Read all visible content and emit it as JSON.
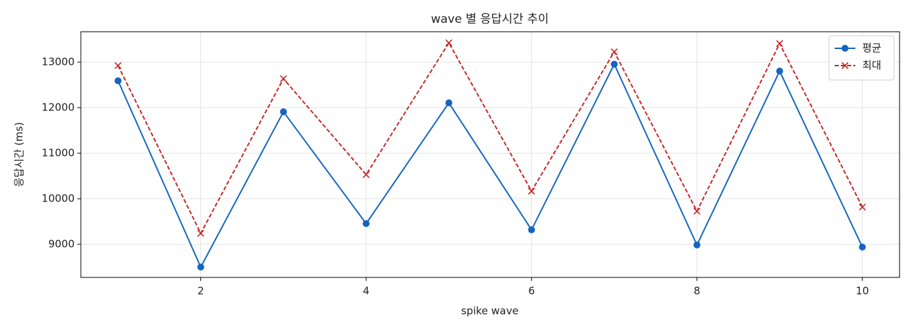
{
  "chart_data": {
    "type": "line",
    "title": "wave 별 응답시간 추이",
    "x_label": "spike wave",
    "y_label": "응답시간 (ms)",
    "x": [
      1,
      2,
      3,
      4,
      5,
      6,
      7,
      8,
      9,
      10
    ],
    "series": [
      {
        "name": "평균",
        "color": "#1565c0",
        "style": "solid",
        "marker": "o",
        "values": [
          12590,
          8500,
          11910,
          9455,
          12106,
          9318,
          12955,
          8985,
          12803,
          8940
        ]
      },
      {
        "name": "최대",
        "color": "#c62828",
        "style": "dashed",
        "marker": "x",
        "values": [
          12924,
          9242,
          12636,
          10530,
          13424,
          10167,
          13227,
          9727,
          13409,
          9818
        ]
      }
    ],
    "xlim": [
      0.55,
      10.45
    ],
    "xticks": [
      2,
      4,
      6,
      8,
      10
    ],
    "ylim": [
      8273,
      13667
    ],
    "yticks": [
      9000,
      10000,
      11000,
      12000,
      13000
    ],
    "grid": true,
    "legend": "upper right"
  }
}
